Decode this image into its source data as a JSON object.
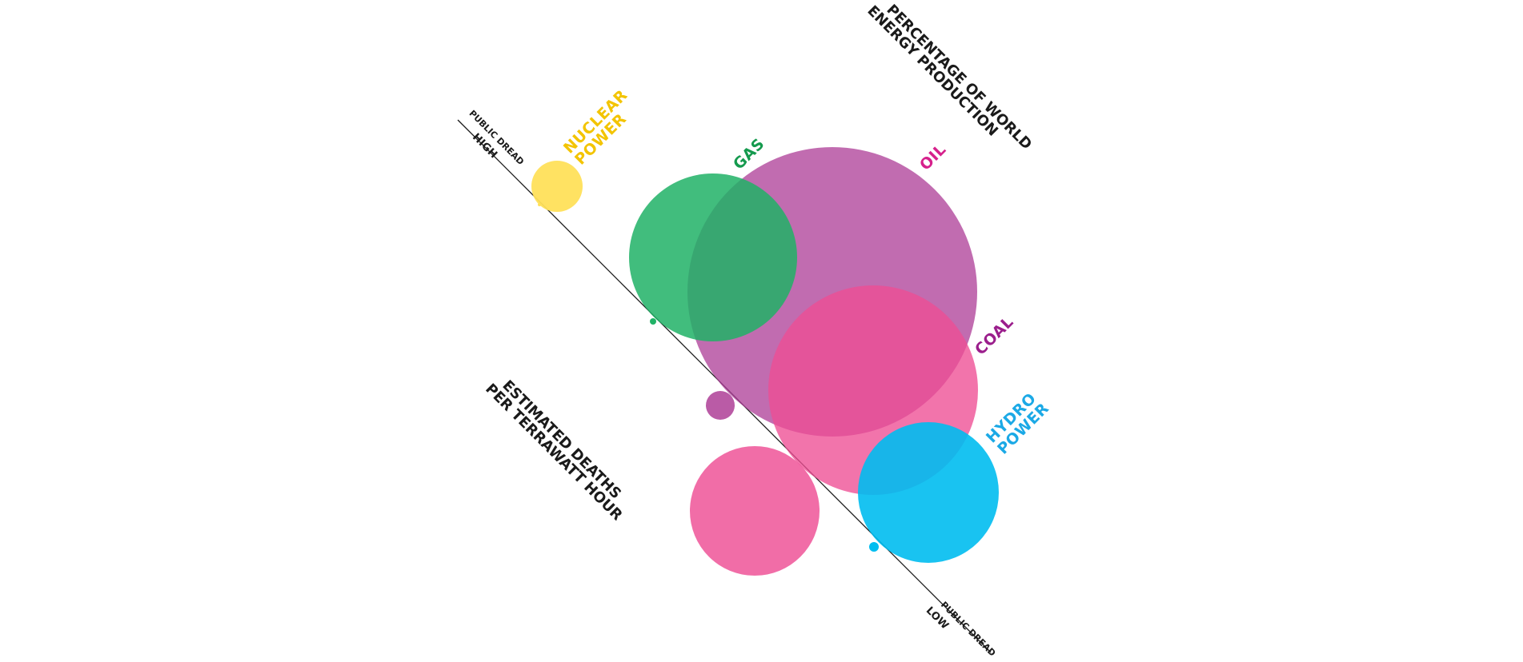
{
  "axis": {
    "top_title_line1": "PERCENTAGE OF WORLD",
    "top_title_line2": "ENERGY PRODUCTION",
    "bottom_title_line1": "ESTIMATED DEATHS",
    "bottom_title_line2": "PER TERRAWATT HOUR",
    "high_end_label_small": "PUBLIC DREAD",
    "high_end_label_big": "HIGH",
    "low_end_label_small": "PUBLIC DREAD",
    "low_end_label_big": "LOW"
  },
  "sources": [
    {
      "key": "nuclear",
      "label_line1": "NUCLEAR",
      "label_line2": "POWER",
      "color": "#FFE05A"
    },
    {
      "key": "gas",
      "label_line1": "GAS",
      "label_line2": "",
      "color": "#20B266"
    },
    {
      "key": "oil",
      "label_line1": "OIL",
      "label_line2": "",
      "color": "#AE3E97"
    },
    {
      "key": "coal",
      "label_line1": "COAL",
      "label_line2": "",
      "color": "#EE4D94"
    },
    {
      "key": "hydro",
      "label_line1": "HYDRO",
      "label_line2": "POWER",
      "color": "#00BDF0"
    }
  ],
  "colors": {
    "nuclear": "#FFE05A",
    "gas": "#20B266",
    "oil": "#AE3E97",
    "coal": "#EE4D94",
    "hydro": "#00BDF0",
    "axis_line": "#1a1a1a",
    "label_nuclear": "#F3C400",
    "label_gas": "#159A4E",
    "label_oil": "#D6218C",
    "label_coal": "#9B1E8C",
    "label_hydro": "#1BA9E6"
  }
}
